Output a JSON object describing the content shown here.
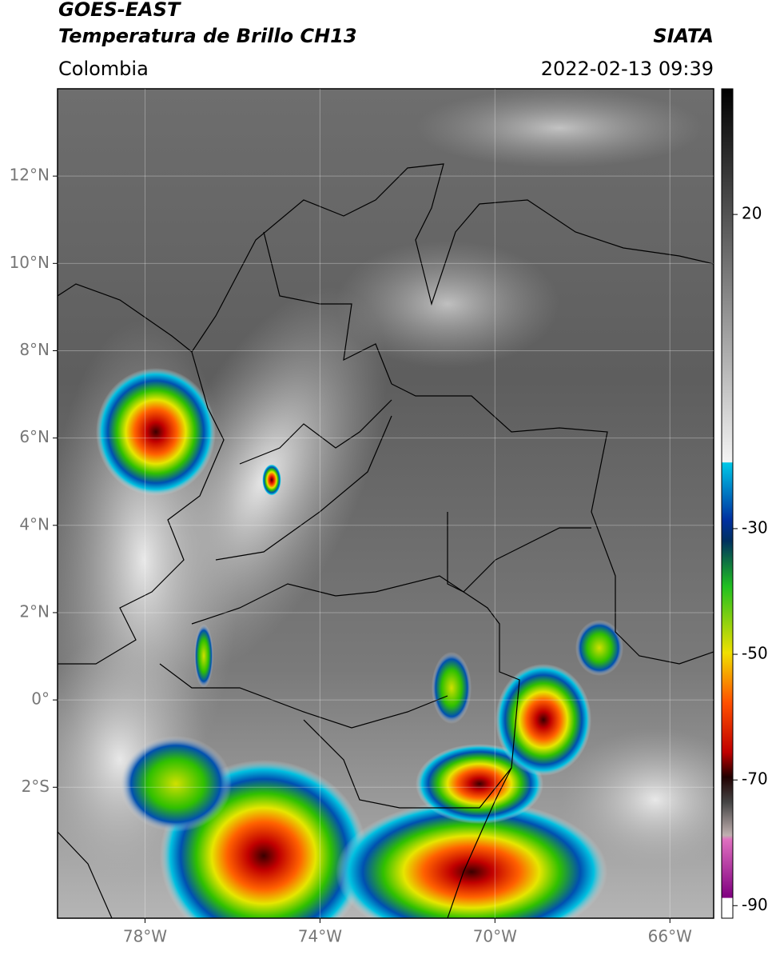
{
  "header": {
    "title": "GOES-EAST",
    "subtitle": "Temperatura de Brillo CH13",
    "source": "SIATA",
    "region": "Colombia",
    "datetime": "2022-02-13 09:39"
  },
  "map": {
    "xlim": [
      -80,
      -65
    ],
    "ylim": [
      -5,
      14
    ],
    "xticks": [
      {
        "value": -78,
        "label": "78°W"
      },
      {
        "value": -74,
        "label": "74°W"
      },
      {
        "value": -70,
        "label": "70°W"
      },
      {
        "value": -66,
        "label": "66°W"
      }
    ],
    "yticks": [
      {
        "value": 12,
        "label": "12°N"
      },
      {
        "value": 10,
        "label": "10°N"
      },
      {
        "value": 8,
        "label": "8°N"
      },
      {
        "value": 6,
        "label": "6°N"
      },
      {
        "value": 4,
        "label": "4°N"
      },
      {
        "value": 2,
        "label": "2°N"
      },
      {
        "value": 0,
        "label": "0°"
      },
      {
        "value": -2,
        "label": "2°S"
      }
    ]
  },
  "colorbar": {
    "lim": [
      -92,
      40
    ],
    "ticks": [
      20,
      -30,
      -50,
      -70,
      -90
    ]
  }
}
